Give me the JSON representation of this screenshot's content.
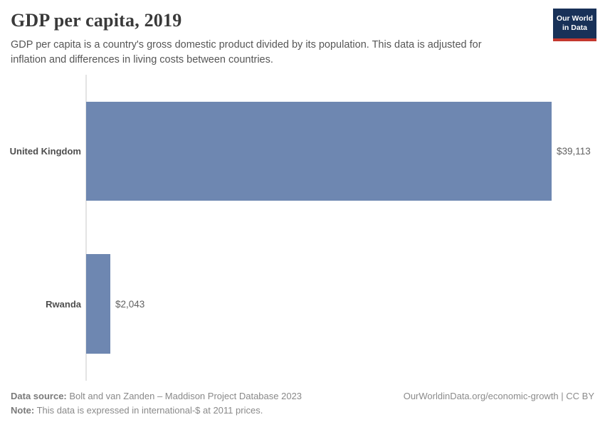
{
  "header": {
    "title": "GDP per capita, 2019",
    "subtitle": "GDP per capita is a country's gross domestic product divided by its population. This data is adjusted for inflation and differences in living costs between countries.",
    "logo_line1": "Our World",
    "logo_line2": "in Data"
  },
  "chart_data": {
    "type": "bar",
    "orientation": "horizontal",
    "title": "GDP per capita, 2019",
    "categories": [
      "United Kingdom",
      "Rwanda"
    ],
    "values": [
      39113,
      2043
    ],
    "value_labels": [
      "$39,113",
      "$2,043"
    ],
    "unit": "international-$ at 2011 prices",
    "xlim": [
      0,
      39113
    ],
    "grid": false,
    "legend": "none",
    "bar_color": "#6e87b1"
  },
  "footer": {
    "data_source_label": "Data source:",
    "data_source_text": " Bolt and van Zanden – Maddison Project Database 2023",
    "note_label": "Note:",
    "note_text": " This data is expressed in international-$ at 2011 prices.",
    "link_text": "OurWorldinData.org/economic-growth | CC BY"
  },
  "colors": {
    "bar": "#6e87b1",
    "logo_background": "#183158",
    "logo_stripe": "#c4382e",
    "axis_line": "#e4e4e4"
  }
}
